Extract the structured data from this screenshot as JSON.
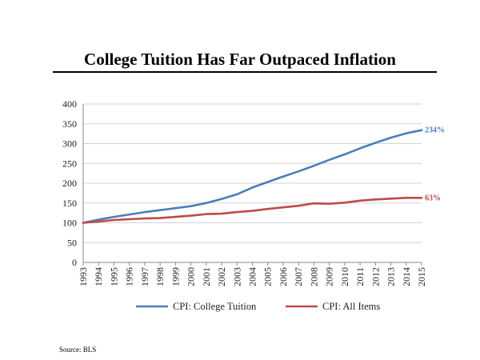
{
  "chart_data": {
    "type": "line",
    "title": "College Tuition Has Far Outpaced Inflation",
    "xlabel": "",
    "ylabel": "",
    "ylim": [
      0,
      400
    ],
    "yticks": [
      0,
      50,
      100,
      150,
      200,
      250,
      300,
      350,
      400
    ],
    "grid": true,
    "legend_position": "bottom",
    "x": [
      "1993",
      "1994",
      "1995",
      "1996",
      "1997",
      "1998",
      "1999",
      "2000",
      "2001",
      "2002",
      "2003",
      "2004",
      "2005",
      "2006",
      "2007",
      "2008",
      "2009",
      "2010",
      "2011",
      "2012",
      "2013",
      "2014",
      "2015"
    ],
    "series": [
      {
        "name": "CPI: College Tuition",
        "color": "#4a7ebb",
        "end_label": "234%",
        "values": [
          100,
          108,
          115,
          121,
          127,
          132,
          137,
          142,
          150,
          160,
          172,
          189,
          203,
          217,
          230,
          244,
          259,
          273,
          288,
          302,
          315,
          326,
          334
        ]
      },
      {
        "name": "CPI: All Items",
        "color": "#be4b48",
        "end_label": "63%",
        "values": [
          100,
          103,
          107,
          109,
          111,
          112,
          115,
          118,
          122,
          123,
          127,
          130,
          135,
          139,
          143,
          149,
          148,
          151,
          156,
          159,
          161,
          163,
          163
        ]
      }
    ]
  },
  "source": "Source: BLS"
}
